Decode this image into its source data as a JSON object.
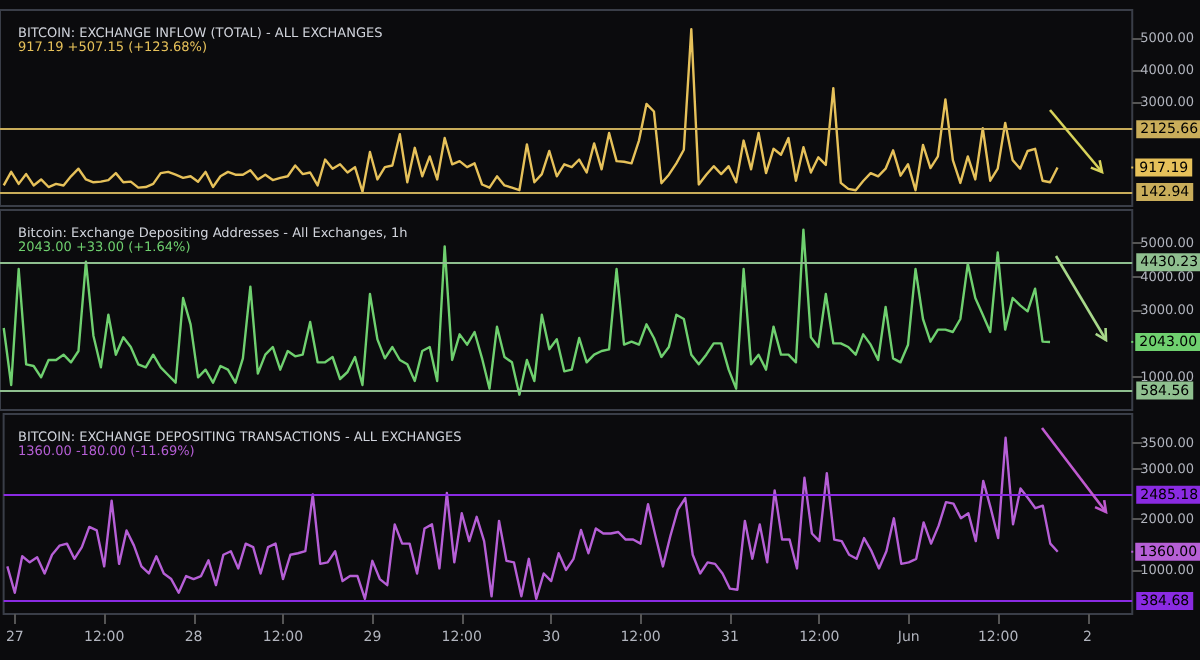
{
  "chart_data": [
    {
      "type": "line",
      "title": "BITCOIN: EXCHANGE INFLOW (TOTAL) - ALL EXCHANGES",
      "subtitle": "917.19 +507.15 (+123.68%)",
      "color": "#e6c15a",
      "tick_labels": "y",
      "xlim": [
        "--05-26T22:30",
        "--06-02T06:00"
      ],
      "ylim": [
        -300,
        5900
      ],
      "yticks": [
        {
          "value": 3000,
          "label": "3000.00"
        },
        {
          "value": 4000,
          "label": "4000.00"
        },
        {
          "value": 5000,
          "label": "5000.00"
        }
      ],
      "ref_lines": [
        {
          "axis": "y",
          "value": 2125.66,
          "label": "2125.66",
          "color": "#c9ad5a"
        },
        {
          "axis": "y",
          "value": 142.94,
          "label": "142.94",
          "color": "#c9ad5a"
        }
      ],
      "annotations": [
        {
          "text": "917.19",
          "x": "--06-02T06:00",
          "y": 917.19
        }
      ],
      "x": [
        "--05-26T23:00",
        "--05-27T00:00",
        "--05-27T01:00",
        "--05-27T02:00",
        "--05-27T03:00",
        "--05-27T04:00",
        "--05-27T05:00",
        "--05-27T06:00",
        "--05-27T07:00",
        "--05-27T08:00",
        "--05-27T09:00",
        "--05-27T10:00",
        "--05-27T11:00",
        "--05-27T12:00",
        "--05-27T13:00",
        "--05-27T14:00",
        "--05-27T15:00",
        "--05-27T16:00",
        "--05-27T17:00",
        "--05-27T18:00",
        "--05-27T19:00",
        "--05-27T20:00",
        "--05-27T21:00",
        "--05-27T22:00",
        "--05-27T23:00",
        "--05-28T00:00",
        "--05-28T01:00",
        "--05-28T02:00",
        "--05-28T03:00",
        "--05-28T04:00",
        "--05-28T05:00",
        "--05-28T06:00",
        "--05-28T07:00",
        "--05-28T08:00",
        "--05-28T09:00",
        "--05-28T10:00",
        "--05-28T11:00",
        "--05-28T12:00",
        "--05-28T13:00",
        "--05-28T14:00",
        "--05-28T15:00",
        "--05-28T16:00",
        "--05-28T17:00",
        "--05-28T18:00",
        "--05-28T19:00",
        "--05-28T20:00",
        "--05-28T21:00",
        "--05-28T22:00",
        "--05-28T23:00",
        "--05-29T00:00",
        "--05-29T01:00",
        "--05-29T02:00",
        "--05-29T03:00",
        "--05-29T04:00",
        "--05-29T05:00",
        "--05-29T06:00",
        "--05-29T07:00",
        "--05-29T08:00",
        "--05-29T09:00",
        "--05-29T10:00",
        "--05-29T11:00",
        "--05-29T12:00",
        "--05-29T13:00",
        "--05-29T14:00",
        "--05-29T15:00",
        "--05-29T16:00",
        "--05-29T17:00",
        "--05-29T18:00",
        "--05-29T19:00",
        "--05-29T20:00",
        "--05-29T21:00",
        "--05-29T22:00",
        "--05-29T23:00",
        "--05-30T00:00",
        "--05-30T01:00",
        "--05-30T02:00",
        "--05-30T03:00",
        "--05-30T04:00",
        "--05-30T05:00",
        "--05-30T06:00",
        "--05-30T07:00",
        "--05-30T08:00",
        "--05-30T09:00",
        "--05-30T10:00",
        "--05-30T11:00",
        "--05-30T12:00",
        "--05-30T13:00",
        "--05-30T14:00",
        "--05-30T15:00",
        "--05-30T16:00",
        "--05-30T17:00",
        "--05-30T18:00",
        "--05-30T19:00",
        "--05-30T20:00",
        "--05-30T21:00",
        "--05-30T22:00",
        "--05-30T23:00",
        "--05-31T00:00",
        "--05-31T01:00",
        "--05-31T02:00",
        "--05-31T03:00",
        "--05-31T04:00",
        "--05-31T05:00",
        "--05-31T06:00",
        "--05-31T07:00",
        "--05-31T08:00",
        "--05-31T09:00",
        "--05-31T10:00",
        "--05-31T11:00",
        "--05-31T12:00",
        "--05-31T13:00",
        "--05-31T14:00",
        "--05-31T15:00",
        "--05-31T16:00",
        "--05-31T17:00",
        "--05-31T18:00",
        "--05-31T19:00",
        "--05-31T20:00",
        "--05-31T21:00",
        "--05-31T22:00",
        "--05-31T23:00",
        "--06-01T00:00",
        "--06-01T01:00",
        "--06-01T02:00",
        "--06-01T03:00",
        "--06-01T04:00",
        "--06-01T05:00",
        "--06-01T06:00",
        "--06-01T07:00",
        "--06-01T08:00",
        "--06-01T09:00",
        "--06-01T10:00",
        "--06-01T11:00",
        "--06-01T12:00",
        "--06-01T13:00",
        "--06-01T14:00",
        "--06-01T15:00",
        "--06-01T16:00",
        "--06-01T17:00",
        "--06-01T18:00",
        "--06-01T19:00",
        "--06-01T20:00"
      ],
      "values": [
        350,
        780,
        400,
        710,
        350,
        540,
        300,
        400,
        350,
        640,
        880,
        540,
        450,
        470,
        520,
        740,
        450,
        470,
        280,
        300,
        400,
        740,
        780,
        690,
        590,
        640,
        470,
        780,
        300,
        640,
        780,
        690,
        690,
        830,
        540,
        690,
        520,
        590,
        640,
        980,
        710,
        760,
        350,
        1170,
        880,
        1020,
        760,
        930,
        150,
        1410,
        540,
        930,
        980,
        1970,
        450,
        1540,
        640,
        1270,
        540,
        1850,
        1020,
        1120,
        930,
        1050,
        380,
        280,
        640,
        350,
        280,
        200,
        1650,
        450,
        710,
        1440,
        640,
        1020,
        930,
        1170,
        760,
        1680,
        860,
        2010,
        1120,
        1100,
        1050,
        1770,
        2930,
        2690,
        420,
        690,
        1050,
        1480,
        5290,
        380,
        690,
        960,
        710,
        960,
        450,
        1770,
        860,
        2010,
        740,
        1510,
        1320,
        1850,
        500,
        1560,
        760,
        1240,
        1000,
        3430,
        430,
        240,
        200,
        490,
        740,
        640,
        880,
        1460,
        660,
        1020,
        200,
        1630,
        900,
        1270,
        3070,
        1150,
        430,
        1270,
        540,
        2160,
        500,
        880,
        2330,
        1150,
        880,
        1440,
        1510,
        500,
        450,
        920
      ]
    },
    {
      "type": "line",
      "title": "Bitcoin: Exchange Depositing Addresses - All Exchanges, 1h",
      "subtitle": "2043.00 +33.00 (+1.64%)",
      "color": "#6fd06f",
      "tick_labels": "y",
      "xlim": [
        "--05-26T22:30",
        "--06-02T06:00"
      ],
      "ylim": [
        0,
        6000
      ],
      "yticks": [
        {
          "value": 1000,
          "label": "1000.00"
        },
        {
          "value": 3000,
          "label": "3000.00"
        },
        {
          "value": 4000,
          "label": "4000.00"
        },
        {
          "value": 5000,
          "label": "5000.00"
        }
      ],
      "ref_lines": [
        {
          "axis": "y",
          "value": 4430.23,
          "label": "4430.23",
          "color": "#8fbf8f"
        },
        {
          "axis": "y",
          "value": 584.56,
          "label": "584.56",
          "color": "#8fbf8f"
        }
      ],
      "annotations": [
        {
          "text": "2043.00",
          "x": "--06-02T06:00",
          "y": 2043
        }
      ],
      "x": [
        "--05-26T23:00",
        "--05-27T00:00",
        "--05-27T01:00",
        "--05-27T02:00",
        "--05-27T03:00",
        "--05-27T04:00",
        "--05-27T05:00",
        "--05-27T06:00",
        "--05-27T07:00",
        "--05-27T08:00",
        "--05-27T09:00",
        "--05-27T10:00",
        "--05-27T11:00",
        "--05-27T12:00",
        "--05-27T13:00",
        "--05-27T14:00",
        "--05-27T15:00",
        "--05-27T16:00",
        "--05-27T17:00",
        "--05-27T18:00",
        "--05-27T19:00",
        "--05-27T20:00",
        "--05-27T21:00",
        "--05-27T22:00",
        "--05-27T23:00",
        "--05-28T00:00",
        "--05-28T01:00",
        "--05-28T02:00",
        "--05-28T03:00",
        "--05-28T04:00",
        "--05-28T05:00",
        "--05-28T06:00",
        "--05-28T07:00",
        "--05-28T08:00",
        "--05-28T09:00",
        "--05-28T10:00",
        "--05-28T11:00",
        "--05-28T12:00",
        "--05-28T13:00",
        "--05-28T14:00",
        "--05-28T15:00",
        "--05-28T16:00",
        "--05-28T17:00",
        "--05-28T18:00",
        "--05-28T19:00",
        "--05-28T20:00",
        "--05-28T21:00",
        "--05-28T22:00",
        "--05-28T23:00",
        "--05-29T00:00",
        "--05-29T01:00",
        "--05-29T02:00",
        "--05-29T03:00",
        "--05-29T04:00",
        "--05-29T05:00",
        "--05-29T06:00",
        "--05-29T07:00",
        "--05-29T08:00",
        "--05-29T09:00",
        "--05-29T10:00",
        "--05-29T11:00",
        "--05-29T12:00",
        "--05-29T13:00",
        "--05-29T14:00",
        "--05-29T15:00",
        "--05-29T16:00",
        "--05-29T17:00",
        "--05-29T18:00",
        "--05-29T19:00",
        "--05-29T20:00",
        "--05-29T21:00",
        "--05-29T22:00",
        "--05-29T23:00",
        "--05-30T00:00",
        "--05-30T01:00",
        "--05-30T02:00",
        "--05-30T03:00",
        "--05-30T04:00",
        "--05-30T05:00",
        "--05-30T06:00",
        "--05-30T07:00",
        "--05-30T08:00",
        "--05-30T09:00",
        "--05-30T10:00",
        "--05-30T11:00",
        "--05-30T12:00",
        "--05-30T13:00",
        "--05-30T14:00",
        "--05-30T15:00",
        "--05-30T16:00",
        "--05-30T17:00",
        "--05-30T18:00",
        "--05-30T19:00",
        "--05-30T20:00",
        "--05-30T21:00",
        "--05-30T22:00",
        "--05-30T23:00",
        "--05-31T00:00",
        "--05-31T01:00",
        "--05-31T02:00",
        "--05-31T03:00",
        "--05-31T04:00",
        "--05-31T05:00",
        "--05-31T06:00",
        "--05-31T07:00",
        "--05-31T08:00",
        "--05-31T09:00",
        "--05-31T10:00",
        "--05-31T11:00",
        "--05-31T12:00",
        "--05-31T13:00",
        "--05-31T14:00",
        "--05-31T15:00",
        "--05-31T16:00",
        "--05-31T17:00",
        "--05-31T18:00",
        "--05-31T19:00",
        "--05-31T20:00",
        "--05-31T21:00",
        "--05-31T22:00",
        "--05-31T23:00",
        "--06-01T00:00",
        "--06-01T01:00",
        "--06-01T02:00",
        "--06-01T03:00",
        "--06-01T04:00",
        "--06-01T05:00",
        "--06-01T06:00",
        "--06-01T07:00",
        "--06-01T08:00",
        "--06-01T09:00",
        "--06-01T10:00",
        "--06-01T11:00",
        "--06-01T12:00",
        "--06-01T13:00",
        "--06-01T14:00",
        "--06-01T15:00",
        "--06-01T16:00",
        "--06-01T17:00",
        "--06-01T18:00",
        "--06-01T19:00"
      ],
      "values": [
        2460,
        750,
        4230,
        1370,
        1320,
        980,
        1500,
        1500,
        1660,
        1430,
        1770,
        4450,
        2230,
        1280,
        2860,
        1660,
        2180,
        1890,
        1370,
        1280,
        1660,
        1280,
        1050,
        820,
        3360,
        2570,
        980,
        1210,
        820,
        1320,
        1210,
        820,
        1550,
        3700,
        1090,
        1660,
        1890,
        1210,
        1770,
        1610,
        1660,
        2640,
        1430,
        1430,
        1590,
        930,
        1140,
        1590,
        750,
        3480,
        2120,
        1550,
        1890,
        1500,
        1370,
        870,
        1770,
        1890,
        870,
        4910,
        1500,
        2270,
        1960,
        2340,
        1550,
        640,
        2500,
        1590,
        1430,
        460,
        1500,
        870,
        2860,
        1820,
        2120,
        1160,
        1210,
        2160,
        1430,
        1660,
        1770,
        1820,
        4230,
        1960,
        2050,
        1960,
        2570,
        2160,
        1590,
        1890,
        2860,
        2730,
        1660,
        1370,
        1660,
        2000,
        2000,
        1210,
        640,
        4230,
        1370,
        1660,
        1210,
        2500,
        1660,
        1660,
        1430,
        5410,
        2180,
        1890,
        3480,
        2000,
        2000,
        1890,
        1660,
        2270,
        1960,
        1500,
        3090,
        1550,
        1430,
        1960,
        4230,
        2730,
        2050,
        2410,
        2410,
        2340,
        2730,
        4390,
        3360,
        2860,
        2340,
        4730,
        2410,
        3360,
        3140,
        2960,
        3640,
        2050,
        2040
      ]
    },
    {
      "type": "line",
      "title": "BITCOIN: EXCHANGE DEPOSITING TRANSACTIONS - ALL EXCHANGES",
      "subtitle": "1360.00 -180.00 (-11.69%)",
      "color": "#b65fd6",
      "xlim": [
        "--05-26T22:30",
        "--06-02T06:00"
      ],
      "ylim": [
        130,
        4080
      ],
      "yticks": [
        {
          "value": 1000,
          "label": "1000.00"
        },
        {
          "value": 2000,
          "label": "2000.00"
        },
        {
          "value": 3000,
          "label": "3000.00"
        },
        {
          "value": 3500,
          "label": "3500.00"
        }
      ],
      "xticks": [
        {
          "value": "--05-27",
          "label": "27"
        },
        {
          "value": "--05-27T12:00",
          "label": "12:00"
        },
        {
          "value": "--05-28",
          "label": "28"
        },
        {
          "value": "--05-28T12:00",
          "label": "12:00"
        },
        {
          "value": "--05-29",
          "label": "29"
        },
        {
          "value": "--05-29T12:00",
          "label": "12:00"
        },
        {
          "value": "--05-30",
          "label": "30"
        },
        {
          "value": "--05-30T12:00",
          "label": "12:00"
        },
        {
          "value": "--05-31",
          "label": "31"
        },
        {
          "value": "--05-31T12:00",
          "label": "12:00"
        },
        {
          "value": "--06-01",
          "label": "Jun"
        },
        {
          "value": "--06-01T12:00",
          "label": "12:00"
        },
        {
          "value": "--06-02",
          "label": "2"
        }
      ],
      "ref_lines": [
        {
          "axis": "y",
          "value": 2485.18,
          "label": "2485.18",
          "color": "#8a2be2"
        },
        {
          "axis": "y",
          "value": 384.68,
          "label": "384.68",
          "color": "#8a2be2"
        }
      ],
      "annotations": [
        {
          "text": "1360.00",
          "x": "--06-02T06:00",
          "y": 1360
        }
      ],
      "x": [
        "--05-26T23:00",
        "--05-27T00:00",
        "--05-27T01:00",
        "--05-27T02:00",
        "--05-27T03:00",
        "--05-27T04:00",
        "--05-27T05:00",
        "--05-27T06:00",
        "--05-27T07:00",
        "--05-27T08:00",
        "--05-27T09:00",
        "--05-27T10:00",
        "--05-27T11:00",
        "--05-27T12:00",
        "--05-27T13:00",
        "--05-27T14:00",
        "--05-27T15:00",
        "--05-27T16:00",
        "--05-27T17:00",
        "--05-27T18:00",
        "--05-27T19:00",
        "--05-27T20:00",
        "--05-27T21:00",
        "--05-27T22:00",
        "--05-27T23:00",
        "--05-28T00:00",
        "--05-28T01:00",
        "--05-28T02:00",
        "--05-28T03:00",
        "--05-28T04:00",
        "--05-28T05:00",
        "--05-28T06:00",
        "--05-28T07:00",
        "--05-28T08:00",
        "--05-28T09:00",
        "--05-28T10:00",
        "--05-28T11:00",
        "--05-28T12:00",
        "--05-28T13:00",
        "--05-28T14:00",
        "--05-28T15:00",
        "--05-28T16:00",
        "--05-28T17:00",
        "--05-28T18:00",
        "--05-28T19:00",
        "--05-28T20:00",
        "--05-28T21:00",
        "--05-28T22:00",
        "--05-28T23:00",
        "--05-29T00:00",
        "--05-29T01:00",
        "--05-29T02:00",
        "--05-29T03:00",
        "--05-29T04:00",
        "--05-29T05:00",
        "--05-29T06:00",
        "--05-29T07:00",
        "--05-29T08:00",
        "--05-29T09:00",
        "--05-29T10:00",
        "--05-29T11:00",
        "--05-29T12:00",
        "--05-29T13:00",
        "--05-29T14:00",
        "--05-29T15:00",
        "--05-29T16:00",
        "--05-29T17:00",
        "--05-29T18:00",
        "--05-29T19:00",
        "--05-29T20:00",
        "--05-29T21:00",
        "--05-29T22:00",
        "--05-29T23:00",
        "--05-30T00:00",
        "--05-30T01:00",
        "--05-30T02:00",
        "--05-30T03:00",
        "--05-30T04:00",
        "--05-30T05:00",
        "--05-30T06:00",
        "--05-30T07:00",
        "--05-30T08:00",
        "--05-30T09:00",
        "--05-30T10:00",
        "--05-30T11:00",
        "--05-30T12:00",
        "--05-30T13:00",
        "--05-30T14:00",
        "--05-30T15:00",
        "--05-30T16:00",
        "--05-30T17:00",
        "--05-30T18:00",
        "--05-30T19:00",
        "--05-30T20:00",
        "--05-30T21:00",
        "--05-30T22:00",
        "--05-30T23:00",
        "--05-31T00:00",
        "--05-31T01:00",
        "--05-31T02:00",
        "--05-31T03:00",
        "--05-31T04:00",
        "--05-31T05:00",
        "--05-31T06:00",
        "--05-31T07:00",
        "--05-31T08:00",
        "--05-31T09:00",
        "--05-31T10:00",
        "--05-31T11:00",
        "--05-31T12:00",
        "--05-31T13:00",
        "--05-31T14:00",
        "--05-31T15:00",
        "--05-31T16:00",
        "--05-31T17:00",
        "--05-31T18:00",
        "--05-31T19:00",
        "--05-31T20:00",
        "--05-31T21:00",
        "--05-31T22:00",
        "--05-31T23:00",
        "--06-01T00:00",
        "--06-01T01:00",
        "--06-01T02:00",
        "--06-01T03:00",
        "--06-01T04:00",
        "--06-01T05:00",
        "--06-01T06:00",
        "--06-01T07:00",
        "--06-01T08:00",
        "--06-01T09:00",
        "--06-01T10:00",
        "--06-01T11:00",
        "--06-01T12:00",
        "--06-01T13:00",
        "--06-01T14:00",
        "--06-01T15:00",
        "--06-01T16:00",
        "--06-01T17:00",
        "--06-01T18:00",
        "--06-01T19:00",
        "--06-01T20:00"
      ],
      "values": [
        1070,
        550,
        1270,
        1150,
        1250,
        930,
        1300,
        1480,
        1520,
        1220,
        1450,
        1850,
        1780,
        1070,
        2370,
        1120,
        1780,
        1480,
        1070,
        930,
        1270,
        930,
        820,
        550,
        880,
        820,
        880,
        1190,
        700,
        1300,
        1370,
        1030,
        1520,
        1450,
        930,
        1450,
        1520,
        820,
        1300,
        1330,
        1370,
        2490,
        1120,
        1150,
        1370,
        780,
        880,
        880,
        430,
        1180,
        820,
        700,
        1900,
        1520,
        1520,
        930,
        1820,
        1900,
        1030,
        2520,
        1150,
        2120,
        1570,
        2050,
        1570,
        480,
        1970,
        1180,
        1150,
        480,
        1220,
        430,
        930,
        780,
        1330,
        1000,
        1220,
        1790,
        1330,
        1820,
        1720,
        1720,
        1750,
        1600,
        1600,
        1520,
        2300,
        1670,
        1070,
        1670,
        2190,
        2420,
        1300,
        930,
        1150,
        1120,
        930,
        630,
        610,
        1970,
        1220,
        1900,
        1150,
        2570,
        1600,
        1600,
        1030,
        2820,
        1720,
        1570,
        2910,
        1600,
        1570,
        1300,
        1220,
        1630,
        1370,
        1030,
        1370,
        2020,
        1120,
        1150,
        1220,
        1940,
        1520,
        1870,
        2340,
        2310,
        2020,
        2120,
        1570,
        2760,
        2220,
        1630,
        3610,
        1900,
        2610,
        2420,
        2220,
        2270,
        1520,
        1360
      ]
    }
  ]
}
